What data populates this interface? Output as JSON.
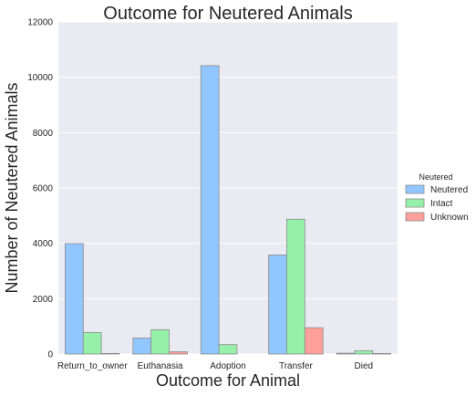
{
  "chart_data": {
    "type": "bar",
    "title": "Outcome for Neutered Animals",
    "xlabel": "Outcome for Animal",
    "ylabel": "Number of Neutered Animals",
    "categories": [
      "Return_to_owner",
      "Euthanasia",
      "Adoption",
      "Transfer",
      "Died"
    ],
    "ylim": [
      0,
      12000
    ],
    "yticks": [
      0,
      2000,
      4000,
      6000,
      8000,
      10000,
      12000
    ],
    "grid": true,
    "legend": {
      "title": "Neutered",
      "placement": "right"
    },
    "series": [
      {
        "name": "Neutered",
        "color": "#92c6ff",
        "values": [
          3990,
          580,
          10420,
          3580,
          30
        ]
      },
      {
        "name": "Intact",
        "color": "#97f0aa",
        "values": [
          780,
          880,
          340,
          4870,
          120
        ]
      },
      {
        "name": "Unknown",
        "color": "#ff9f9a",
        "values": [
          20,
          80,
          0,
          950,
          20
        ]
      }
    ]
  }
}
